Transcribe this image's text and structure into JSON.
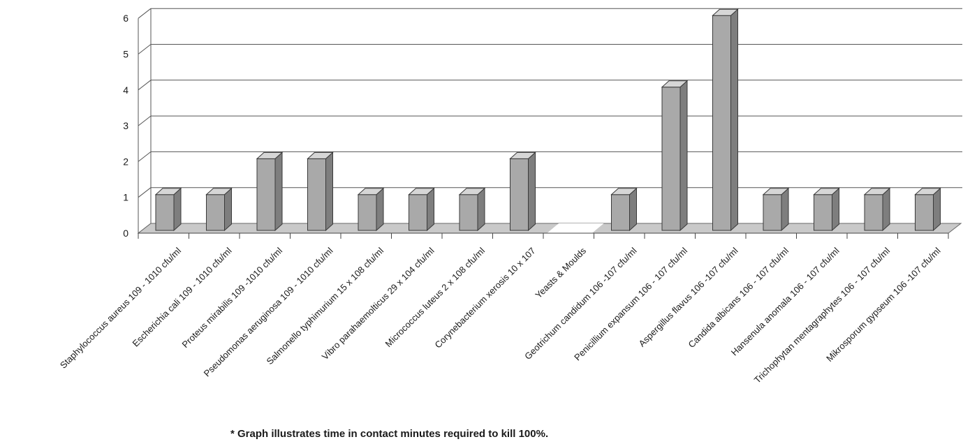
{
  "chart_data": {
    "type": "bar",
    "categories": [
      "Staphylococcus aureus 109 - 1010 cfu/ml",
      "Escherichia cali 109 - 1010 cfu/ml",
      "Proteus mirabilis 109 -1010 cfu/ml",
      "Pseudomonas aeruginosa 109 - 1010 cfu/ml",
      "Salmonello typhimurium 15 x 108 cfu/ml",
      "Vibro parahaemolticus 29 x 104 cfu/ml",
      "Micrococcus luteus 2 x 108 cfu/ml",
      "Corynebacterium xerosis 10 x 107",
      "Yeasts & Moulds",
      "Geotrichum candidum 106 -107 cfu/ml",
      "Penicillium expansum 106 - 107 cfu/ml",
      "Aspergillus flavus 106 -107 cfu/ml",
      "Candida albicans 106 - 107 cfu/ml",
      "Hansenula anomala 106 - 107 cfu/ml",
      "Trichophytan mentagraphytes 106 - 107 cfu/ml",
      "Mikrosporum gypseum 106 -107 cfu/ml"
    ],
    "values": [
      1,
      1,
      2,
      2,
      1,
      1,
      1,
      2,
      null,
      1,
      4,
      6,
      1,
      1,
      1,
      1
    ],
    "yticks": [
      "0",
      "1",
      "2",
      "3",
      "4",
      "5",
      "6"
    ],
    "ylim": [
      0,
      6
    ],
    "grid": true,
    "style": "3d-column",
    "bar_color": "#a9a9a9",
    "footnote": "* Graph illustrates time in contact minutes required to kill 100%."
  }
}
